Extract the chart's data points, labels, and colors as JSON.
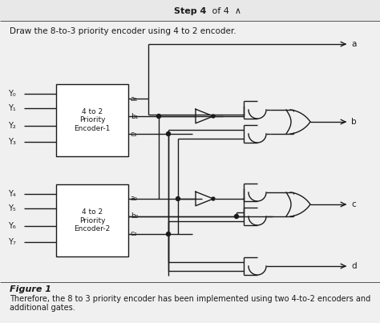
{
  "bg_color": "#f0f0f0",
  "line_color": "#1a1a1a",
  "text_color": "#1a1a1a",
  "title_bold": "Step 4",
  "title_rest": " of 4  ∧",
  "question": "Draw the 8-to-3 priority encoder using 4 to 2 encoder.",
  "enc1_label": "4 to 2\nPriority\nEncoder-1",
  "enc2_label": "4 to 2\nPriority\nEncoder-2",
  "inputs1": [
    "Y₀",
    "Y₁",
    "Y₂",
    "Y₃"
  ],
  "inputs2": [
    "Y₄",
    "Y₅",
    "Y₆",
    "Y₇"
  ],
  "out1_labels": [
    "a₁",
    "b₁",
    "c₁"
  ],
  "out2_labels": [
    "a₂",
    "b₂",
    "c₂"
  ],
  "outputs": [
    "a",
    "b",
    "c",
    "d"
  ],
  "figure_label": "Figure 1",
  "caption_line1": "Therefore, the 8 to 3 priority encoder has been implemented using two 4-to-2 encoders and",
  "caption_line2": "additional gates."
}
